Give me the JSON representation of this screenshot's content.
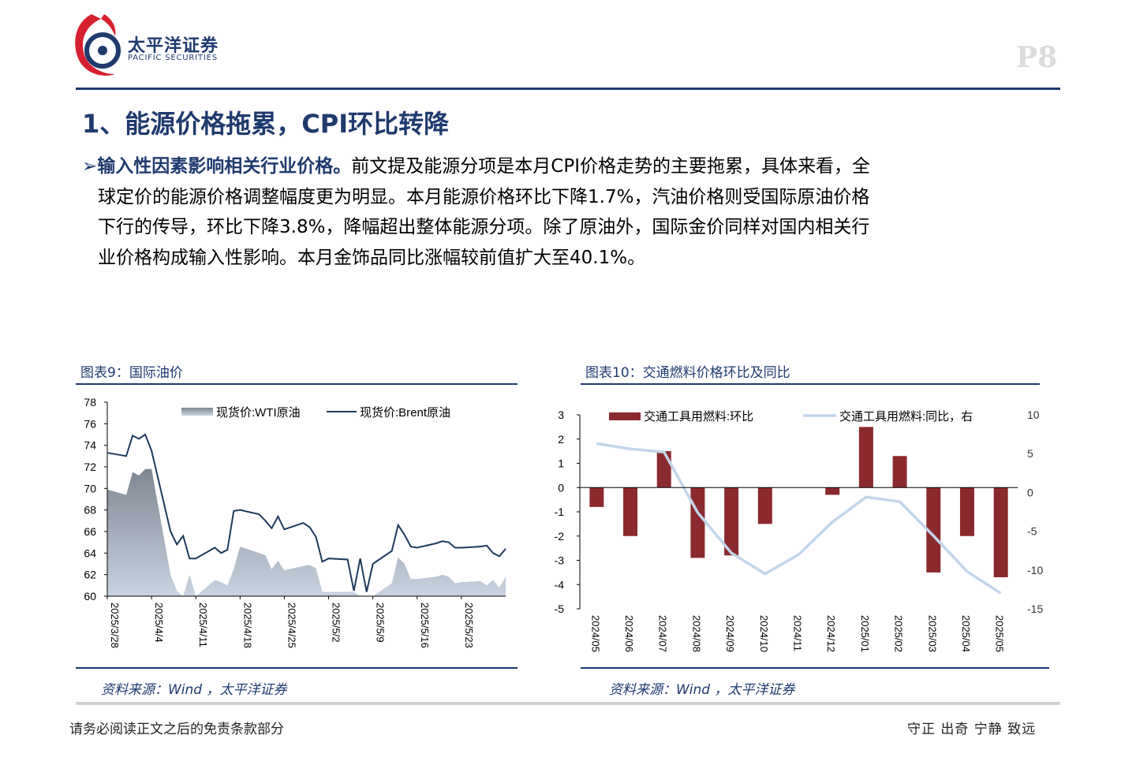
{
  "brand": {
    "name_cn": "太平洋证券",
    "name_en": "PACIFIC SECURITIES",
    "page_label": "P8"
  },
  "section": {
    "title": "1、能源价格拖累，CPI环比转降"
  },
  "paragraph": {
    "bullet": "➢",
    "lead": "输入性因素影响相关行业价格。",
    "line1": "前文提及能源分项是本月CPI价格走势的主要拖累，具体来看，全",
    "line2": "球定价的能源价格调整幅度更为明显。本月能源价格环比下降1.7%，汽油价格则受国际原油价格",
    "line3": "下行的传导，环比下降3.8%，降幅超出整体能源分项。除了原油外，国际金价同样对国内相关行",
    "line4": "业价格构成输入性影响。本月金饰品同比涨幅较前值扩大至40.1%。"
  },
  "figure9": {
    "title": "图表9：国际油价",
    "source": "资料来源：Wind ，太平洋证券"
  },
  "figure10": {
    "title": "图表10：交通燃料价格环比及同比",
    "source": "资料来源：Wind ，太平洋证券"
  },
  "footer": {
    "disclaimer": "请务必阅读正文之后的免责条款部分",
    "motto": "守正 出奇 宁静 致远"
  },
  "colors": {
    "brand_blue": "#1f3a6e",
    "logo_red": "#d6202f",
    "bar_red": "#8b2a2e",
    "line_light_blue": "#c3d5ea",
    "brent_line": "#1f3a5c",
    "wti_area_top": "#7f8792",
    "wti_area_bottom": "#c9d3e0"
  },
  "chart_data": [
    {
      "type": "area",
      "title": "",
      "x_ticks": [
        "2025/3/28",
        "2025/4/4",
        "2025/4/11",
        "2025/4/18",
        "2025/4/25",
        "2025/5/2",
        "2025/5/9",
        "2025/5/16",
        "2025/5/23"
      ],
      "ylim": [
        60,
        78
      ],
      "y_ticks": [
        60,
        62,
        64,
        66,
        68,
        70,
        72,
        74,
        76,
        78
      ],
      "legend_position": "top",
      "series": [
        {
          "name": "现货价:WTI原油",
          "style": "area",
          "points": [
            [
              "2025/3/28",
              69.9
            ],
            [
              "2025/3/31",
              69.4
            ],
            [
              "2025/4/1",
              71.5
            ],
            [
              "2025/4/2",
              71.2
            ],
            [
              "2025/4/3",
              71.8
            ],
            [
              "2025/4/4",
              71.8
            ],
            [
              "2025/4/7",
              62.0
            ],
            [
              "2025/4/8",
              60.5
            ],
            [
              "2025/4/9",
              59.5
            ],
            [
              "2025/4/10",
              62.0
            ],
            [
              "2025/4/11",
              60.0
            ],
            [
              "2025/4/14",
              61.5
            ],
            [
              "2025/4/15",
              61.3
            ],
            [
              "2025/4/16",
              61.0
            ],
            [
              "2025/4/17",
              62.5
            ],
            [
              "2025/4/18",
              64.6
            ],
            [
              "2025/4/21",
              64.0
            ],
            [
              "2025/4/22",
              63.8
            ],
            [
              "2025/4/23",
              62.5
            ],
            [
              "2025/4/24",
              63.3
            ],
            [
              "2025/4/25",
              62.4
            ],
            [
              "2025/4/28",
              62.8
            ],
            [
              "2025/4/29",
              62.9
            ],
            [
              "2025/4/30",
              62.6
            ],
            [
              "2025/5/1",
              60.4
            ],
            [
              "2025/5/2",
              60.4
            ],
            [
              "2025/5/5",
              60.4
            ],
            [
              "2025/5/6",
              60.4
            ],
            [
              "2025/5/7",
              59.5
            ],
            [
              "2025/5/8",
              59.3
            ],
            [
              "2025/5/9",
              60.0
            ],
            [
              "2025/5/12",
              61.2
            ],
            [
              "2025/5/13",
              63.6
            ],
            [
              "2025/5/14",
              63.0
            ],
            [
              "2025/5/15",
              61.6
            ],
            [
              "2025/5/16",
              61.6
            ],
            [
              "2025/5/19",
              61.8
            ],
            [
              "2025/5/20",
              62.0
            ],
            [
              "2025/5/21",
              61.8
            ],
            [
              "2025/5/22",
              61.2
            ],
            [
              "2025/5/23",
              61.3
            ],
            [
              "2025/5/26",
              61.4
            ],
            [
              "2025/5/27",
              61.0
            ],
            [
              "2025/5/28",
              61.5
            ],
            [
              "2025/5/29",
              60.8
            ],
            [
              "2025/5/30",
              61.8
            ]
          ]
        },
        {
          "name": "现货价:Brent原油",
          "style": "line",
          "points": [
            [
              "2025/3/28",
              73.3
            ],
            [
              "2025/3/31",
              73.0
            ],
            [
              "2025/4/1",
              74.9
            ],
            [
              "2025/4/2",
              74.6
            ],
            [
              "2025/4/3",
              75.0
            ],
            [
              "2025/4/4",
              73.5
            ],
            [
              "2025/4/7",
              66.0
            ],
            [
              "2025/4/8",
              64.8
            ],
            [
              "2025/4/9",
              65.6
            ],
            [
              "2025/4/10",
              63.5
            ],
            [
              "2025/4/11",
              63.5
            ],
            [
              "2025/4/14",
              64.5
            ],
            [
              "2025/4/15",
              64.0
            ],
            [
              "2025/4/16",
              64.3
            ],
            [
              "2025/4/17",
              67.9
            ],
            [
              "2025/4/18",
              68.0
            ],
            [
              "2025/4/21",
              67.6
            ],
            [
              "2025/4/22",
              67.0
            ],
            [
              "2025/4/23",
              66.3
            ],
            [
              "2025/4/24",
              67.4
            ],
            [
              "2025/4/25",
              66.2
            ],
            [
              "2025/4/28",
              66.8
            ],
            [
              "2025/4/29",
              66.4
            ],
            [
              "2025/4/30",
              65.5
            ],
            [
              "2025/5/1",
              63.2
            ],
            [
              "2025/5/2",
              63.5
            ],
            [
              "2025/5/5",
              63.4
            ],
            [
              "2025/5/6",
              60.5
            ],
            [
              "2025/5/7",
              63.5
            ],
            [
              "2025/5/8",
              60.4
            ],
            [
              "2025/5/9",
              63.0
            ],
            [
              "2025/5/12",
              64.2
            ],
            [
              "2025/5/13",
              66.6
            ],
            [
              "2025/5/14",
              65.7
            ],
            [
              "2025/5/15",
              64.6
            ],
            [
              "2025/5/16",
              64.5
            ],
            [
              "2025/5/19",
              64.9
            ],
            [
              "2025/5/20",
              65.1
            ],
            [
              "2025/5/21",
              65.0
            ],
            [
              "2025/5/22",
              64.5
            ],
            [
              "2025/5/23",
              64.5
            ],
            [
              "2025/5/26",
              64.6
            ],
            [
              "2025/5/27",
              64.7
            ],
            [
              "2025/5/28",
              64.0
            ],
            [
              "2025/5/29",
              63.7
            ],
            [
              "2025/5/30",
              64.4
            ]
          ]
        }
      ]
    },
    {
      "type": "bar",
      "title": "",
      "categories": [
        "2024/05",
        "2024/06",
        "2024/07",
        "2024/08",
        "2024/09",
        "2024/10",
        "2024/11",
        "2024/12",
        "2025/01",
        "2025/02",
        "2025/03",
        "2025/04",
        "2025/05"
      ],
      "ylim": [
        -5,
        3
      ],
      "y_ticks": [
        -5,
        -4,
        -3,
        -2,
        -1,
        0,
        1,
        2,
        3
      ],
      "y2lim": [
        -15,
        10
      ],
      "y2_ticks": [
        -15,
        -10,
        -5,
        0,
        5,
        10
      ],
      "legend_position": "top",
      "series": [
        {
          "name": "交通工具用燃料:环比",
          "style": "bar",
          "axis": "left",
          "values": [
            -0.8,
            -2.0,
            1.5,
            -2.9,
            -2.8,
            -1.5,
            0.0,
            -0.3,
            2.5,
            1.3,
            -3.5,
            -2.0,
            -3.7
          ]
        },
        {
          "name": "交通工具用燃料:同比，右",
          "style": "line",
          "axis": "right",
          "values": [
            6.3,
            5.6,
            5.2,
            -2.6,
            -7.8,
            -10.5,
            -8.0,
            -3.8,
            -0.6,
            -1.2,
            -5.6,
            -10.2,
            -13.0
          ]
        }
      ]
    }
  ]
}
